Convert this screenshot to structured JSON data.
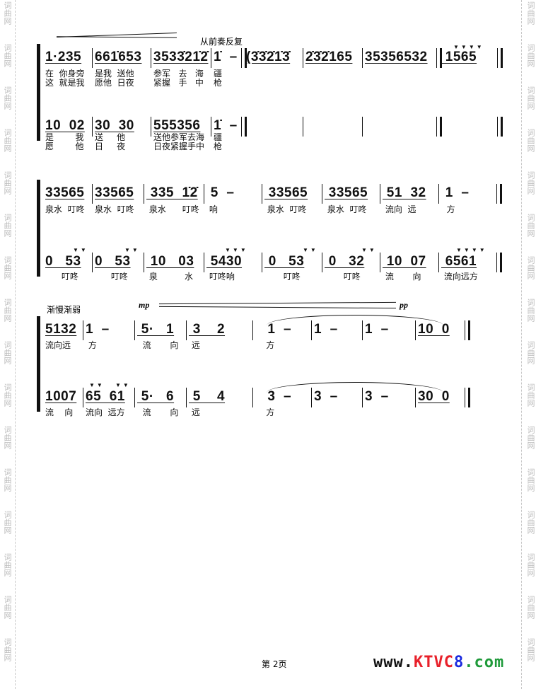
{
  "watermark": "词曲网",
  "repeat_instruction": "从前奏反复",
  "tempo_instruction": "渐慢渐弱",
  "dynamics": {
    "start": "mp",
    "end": "pp"
  },
  "footer": {
    "page_label": "第 2页",
    "logo": {
      "part1": "www.",
      "part2": "KTVC",
      "part3": "8",
      ".": "",
      "part4": ".com",
      "colors": [
        "#111111",
        "#e8202a",
        "#1a2adf",
        "#1f9a3a"
      ]
    }
  },
  "systems": [
    {
      "top": [
        {
          "notes": "1·235",
          "l1": "在  你身旁",
          "l2": "这  就是我"
        },
        {
          "notes": "661̇653",
          "l1": "是我  送他",
          "l2": "愿他  日夜"
        },
        {
          "notes": "3533̇21̇2̇",
          "l1": "参军   去   海",
          "l2": "紧握   手   中"
        },
        {
          "notes": "1̇  –",
          "l1": "疆",
          "l2": "枪"
        },
        {
          "notes": "(3̇3̇2̇1̇3̇",
          "l1": "",
          "l2": ""
        },
        {
          "notes": "2̇3̇2̇165",
          "l1": "",
          "l2": ""
        },
        {
          "notes": "35356532",
          "l1": "",
          "l2": ""
        },
        {
          "notes": " 1565",
          "l1": "",
          "l2": ""
        }
      ],
      "bottom": [
        {
          "notes": "10  02",
          "l1": "是        我",
          "l2": "愿        他"
        },
        {
          "notes": "30  30",
          "l1": "送     他",
          "l2": "日     夜"
        },
        {
          "notes": "555356",
          "l1": "送他参军去海",
          "l2": "日夜紧握手中"
        },
        {
          "notes": "1̇  –",
          "l1": "疆",
          "l2": "枪"
        },
        {
          "notes": "",
          "l1": "",
          "l2": ""
        },
        {
          "notes": "",
          "l1": "",
          "l2": ""
        },
        {
          "notes": "",
          "l1": "",
          "l2": ""
        },
        {
          "notes": "",
          "l1": "",
          "l2": ""
        }
      ]
    },
    {
      "top": [
        {
          "notes": "33565",
          "l1": "泉水  叮咚"
        },
        {
          "notes": "33565",
          "l1": "泉水  叮咚"
        },
        {
          "notes": " 335  1̇2̇",
          "l1": " 泉水      叮咚"
        },
        {
          "notes": " 5  –",
          "l1": " 响"
        },
        {
          "notes": " 33565",
          "l1": " 泉水  叮咚"
        },
        {
          "notes": " 33565",
          "l1": " 泉水  叮咚"
        },
        {
          "notes": " 51  32",
          "l1": " 流向  远"
        },
        {
          "notes": " 1  –",
          "l1": "  方"
        }
      ],
      "bottom": [
        {
          "notes": "0   53",
          "l1": "      叮咚"
        },
        {
          "notes": "0   53",
          "l1": "      叮咚"
        },
        {
          "notes": " 10   03",
          "l1": " 泉          水"
        },
        {
          "notes": " 5430",
          "l1": " 叮咚响"
        },
        {
          "notes": " 0   53",
          "l1": "       叮咚"
        },
        {
          "notes": " 0   32",
          "l1": "       叮咚"
        },
        {
          "notes": " 10  07",
          "l1": " 流       向"
        },
        {
          "notes": " 6561",
          "l1": " 流向远方"
        }
      ]
    },
    {
      "top": [
        {
          "notes": "5132",
          "l1": "流向远"
        },
        {
          "notes": "1  –",
          "l1": " 方"
        },
        {
          "notes": " 5·   1",
          "l1": "  流       向"
        },
        {
          "notes": " 3    2",
          "l1": " 远"
        },
        {
          "notes": "   1  –",
          "l1": "    方"
        },
        {
          "notes": "1  –",
          "l1": ""
        },
        {
          "notes": "1  –",
          "l1": ""
        },
        {
          "notes": "10  0",
          "l1": ""
        }
      ],
      "bottom": [
        {
          "notes": "1007",
          "l1": "流    向"
        },
        {
          "notes": "65  61",
          "l1": "流向  远方"
        },
        {
          "notes": " 5·   6",
          "l1": "  流       向"
        },
        {
          "notes": " 5    4",
          "l1": " 远"
        },
        {
          "notes": "   3  –",
          "l1": "    方"
        },
        {
          "notes": "3  –",
          "l1": ""
        },
        {
          "notes": "3  –",
          "l1": ""
        },
        {
          "notes": "30  0",
          "l1": ""
        }
      ]
    }
  ]
}
